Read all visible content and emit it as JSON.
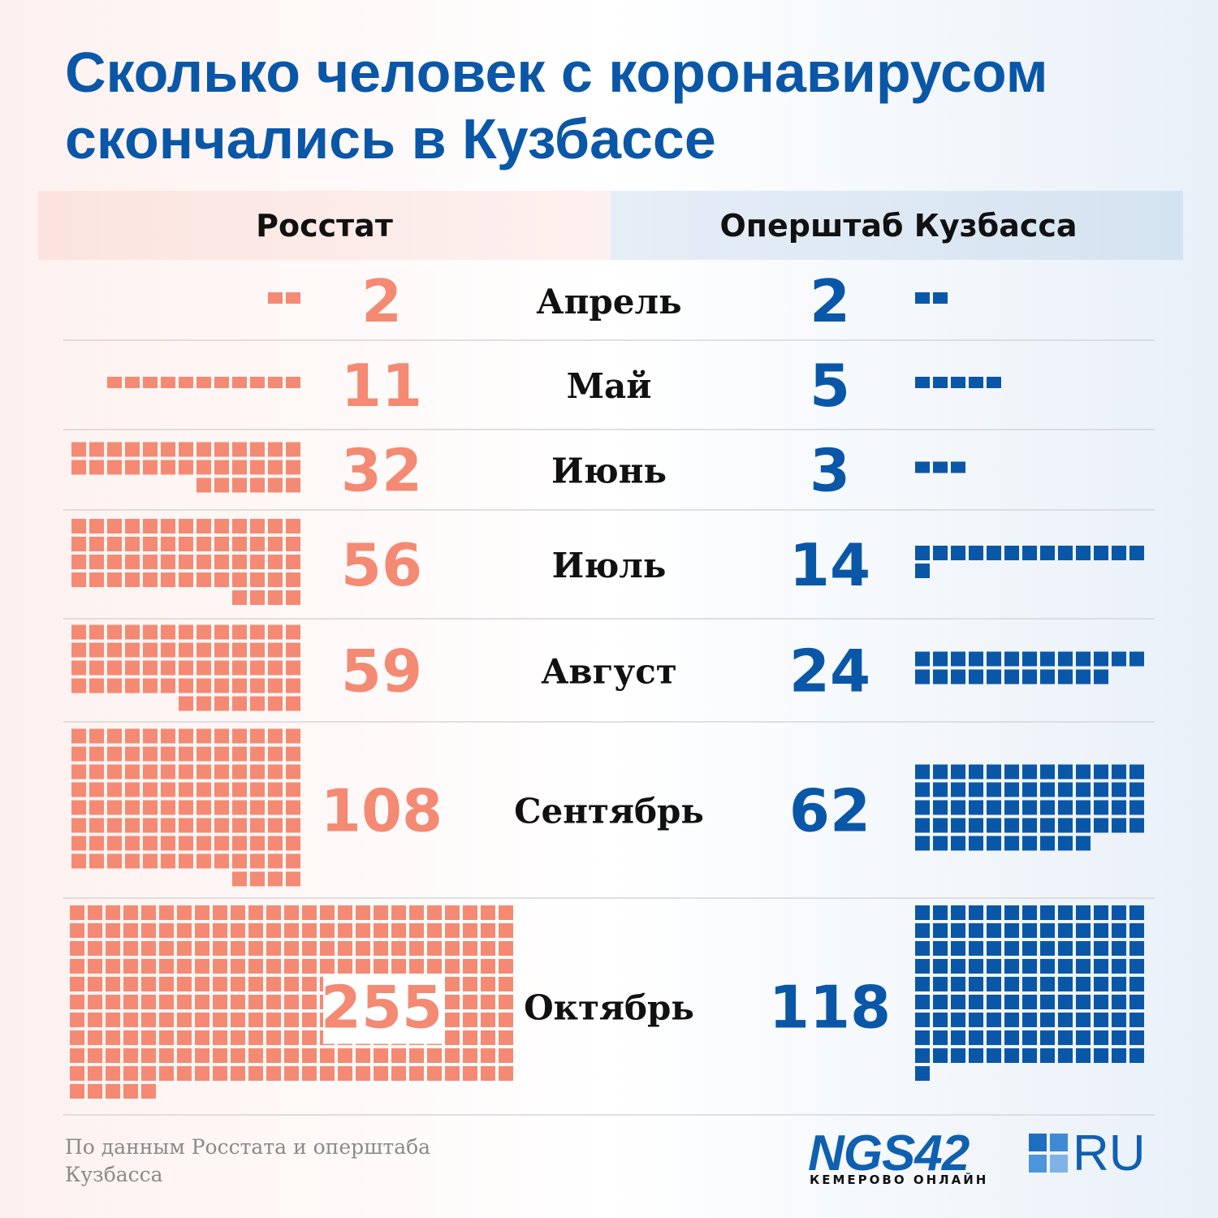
{
  "title": "Сколько человек с коронавирусом скончались в Кузбассе",
  "colors": {
    "rosstat": "#f48a73",
    "opershtab": "#0a57a8",
    "title": "#0a57a8"
  },
  "chart_data": {
    "type": "table",
    "series": [
      {
        "name": "Росстат",
        "values": [
          2,
          11,
          32,
          56,
          59,
          108,
          255
        ]
      },
      {
        "name": "Оперштаб Кузбасса",
        "values": [
          2,
          5,
          3,
          14,
          24,
          62,
          118
        ]
      }
    ],
    "categories": [
      "Апрель",
      "Май",
      "Июнь",
      "Июль",
      "Август",
      "Сентябрь",
      "Октябрь"
    ]
  },
  "footer": {
    "source_line1": "По данным Росстата и оперштаба",
    "source_line2": "Кузбасса"
  },
  "logo": {
    "brand": "NGS42",
    "domain": "RU",
    "tagline": "КЕМЕРОВО ОНЛАЙН"
  }
}
